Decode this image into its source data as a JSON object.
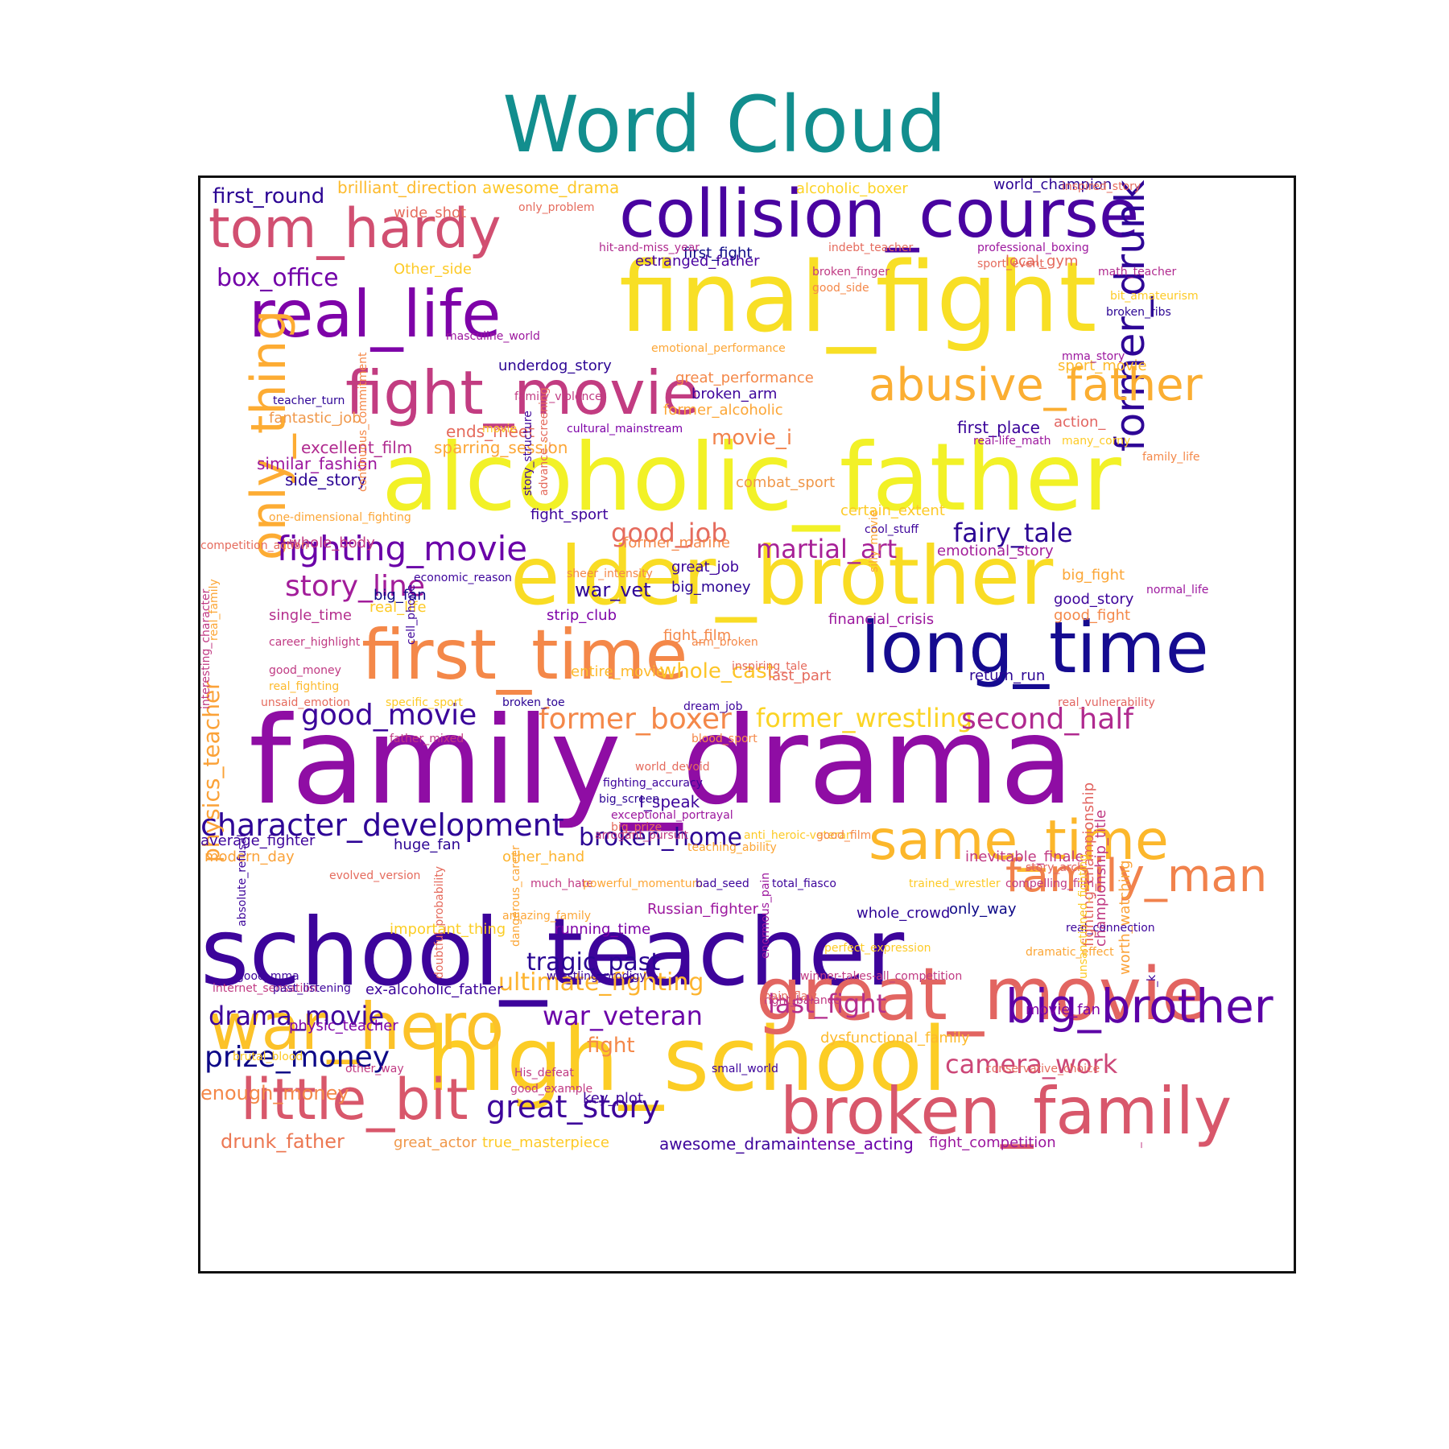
{
  "title": "Word Cloud",
  "colors": {
    "title": "#128e8e",
    "frame": "#111111"
  },
  "words": [
    "family_drama",
    "school_teacher",
    "final_fight",
    "alcoholic_father",
    "elder_brother",
    "high_school",
    "collision_course",
    "long_time",
    "great_movie",
    "first_time",
    "broken_family",
    "real_life",
    "fight_movie",
    "only_thing",
    "war_hero",
    "tom_hardy",
    "little_bit",
    "former_drunk",
    "same_time",
    "abusive_father",
    "big_brother",
    "family_man",
    "fighting_movie",
    "character_development",
    "good_movie",
    "former_boxer",
    "former_wrestling",
    "second_half",
    "story_line",
    "prize_money",
    "great_story",
    "tragic_past",
    "drama_movie",
    "war_veteran",
    "broken_home",
    "camera_work",
    "physics_teacher",
    "last_fight",
    "martial_art",
    "good_job",
    "fairy_tale",
    "box_office",
    "ultimate_fighting",
    "enough_money",
    "first_round",
    "drunk_father",
    "whole_cast",
    "movie_i",
    "fight",
    "brilliant_direction",
    "awesome_drama",
    "awesome_drama",
    "intense_acting",
    "emotional_story",
    "underdog_story",
    "war_vet",
    "estranged_father",
    "financial_crisis",
    "story_arch",
    "important_thing",
    "running_time",
    "fighting_championship",
    "championship_title",
    "worth_watching",
    "first_place",
    "sparring_session",
    "ends_meet",
    "excellent_film",
    "similar_fashion",
    "side_story",
    "fight_sport",
    "combat_sport",
    "great_performance",
    "former_alcoholic",
    "broken_arm",
    "local_gym",
    "wide_shot",
    "Other_side",
    "alcoholic_boxer",
    "world_champion",
    "first_fight",
    "sport_movie",
    "action_",
    "great_job",
    "big_money",
    "good_story",
    "good_fight",
    "big_fight",
    "strip_club",
    "fight_film",
    "last_part",
    "return_run",
    "whole_body",
    "single_time",
    "big_fan",
    "former_marine",
    "certain_extent",
    "ex-alcoholic_father",
    "huge_fan",
    "Russian_fighter",
    "whole_crowd",
    "only_way",
    "average_fighter",
    "modern_day",
    "inevitable_finale",
    "movie_fan",
    "dysfunctional_family",
    "fight_competition",
    "true_masterpiece",
    "great_actor",
    "key_plot",
    "other_hand",
    "I_speak",
    "physic_teacher",
    "real_life",
    "entire_movie",
    "fantastic_job",
    "teacher_turn",
    "family_violence",
    "cultural_mainstream",
    "movie",
    "masculine_world",
    "emotional_performance",
    "only_problem",
    "hit-and-miss_year",
    "indebt_teacher",
    "professional_boxing",
    "broken_finger",
    "good_side",
    "sport_event",
    "math_teacher",
    "bit_amateurism",
    "broken_ribs",
    "mma_story",
    "real-life_math",
    "many_corny",
    "family_life",
    "inspired_story",
    "cool_stuff",
    "sheer_intensity",
    "economic_reason",
    "normal_life",
    "career_highlight",
    "arm_broken",
    "inspiring_tale",
    "good_money",
    "real_fighting",
    "unsaid_emotion",
    "specific_sport",
    "broken_toe",
    "dream_job",
    "real_vulnerability",
    "father_mixed",
    "blood_sport",
    "world_devoid",
    "fighting_accuracy",
    "big_screen",
    "exceptional_portrayal",
    "big_prize",
    "arrogant_pursuit",
    "anti_heroic-veteran",
    "teaching_ability",
    "good_film",
    "evolved_version",
    "much_hate",
    "powerful_momentum",
    "bad_seed",
    "total_fiasco",
    "trained_wrestler",
    "compelling_film",
    "amazing_family",
    "real_connection",
    "perfect_expression",
    "good_mma",
    "wrestling_prodigy",
    "winner-takes-all_competition",
    "right_balance",
    "dramatic_effect",
    "internet_sensation",
    "past_listening",
    "main_flaw",
    "brutal_blood",
    "other_way",
    "His_defeat",
    "good_example",
    "small_world",
    "conservative_choice",
    "one-dimensional_fighting",
    "competition_action",
    "interesting_character",
    "real_family",
    "continuous_commitment",
    "story_structure",
    "advance_screening",
    "cell_phone",
    "silly_movie",
    "absolute_refusal",
    "doubtful_probability",
    "dangerous_career",
    "enormous_pain",
    "unsanctioned_fighting",
    "_k",
    "_"
  ]
}
